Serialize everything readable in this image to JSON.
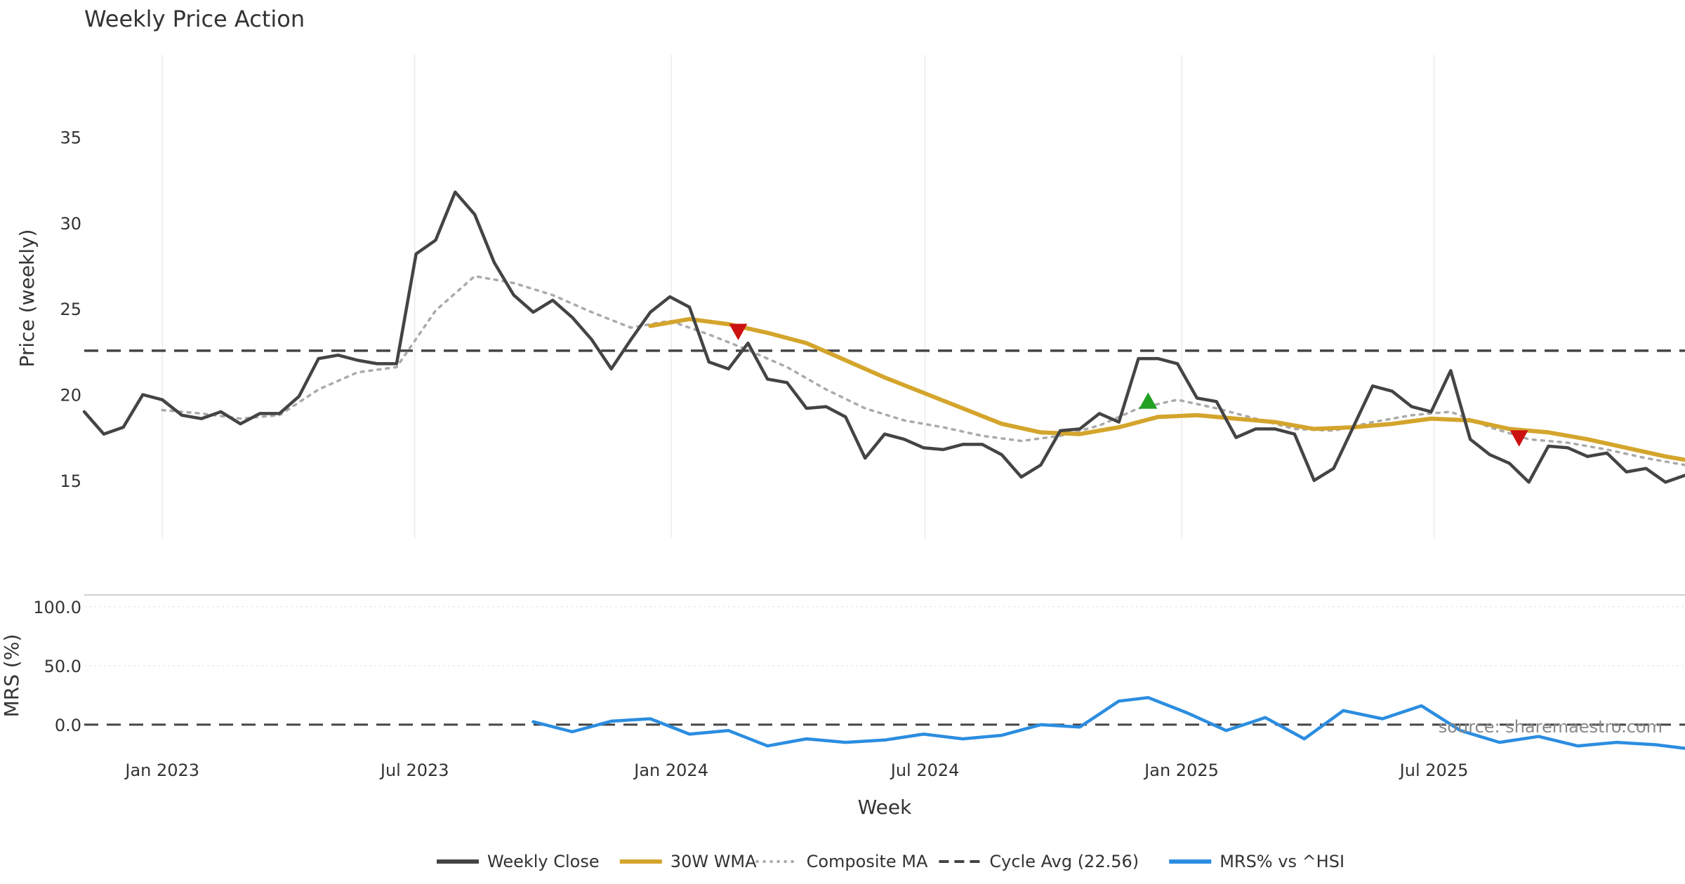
{
  "chart_data": [
    {
      "type": "line",
      "title": "Weekly Price Action",
      "ylabel": "Price (weekly)",
      "xlabel": "",
      "x_range": [
        "2022-11-06",
        "2025-12-28"
      ],
      "ylim": [
        11.6,
        39.8
      ],
      "yticks": [
        15,
        20,
        25,
        30,
        35
      ],
      "ytick_labels": [
        "15",
        "20",
        "25",
        "30",
        "35"
      ],
      "xgrid": [
        "2023-01-01",
        "2023-07-01",
        "2024-01-01",
        "2024-07-01",
        "2025-01-01",
        "2025-07-01"
      ],
      "series": [
        {
          "name": "Weekly Close",
          "color": "#444444",
          "style": "solid",
          "points": [
            [
              "2022-11-06",
              19.0
            ],
            [
              "2022-11-20",
              17.7
            ],
            [
              "2022-12-04",
              18.1
            ],
            [
              "2022-12-18",
              20.0
            ],
            [
              "2023-01-01",
              19.7
            ],
            [
              "2023-01-15",
              18.8
            ],
            [
              "2023-01-29",
              18.6
            ],
            [
              "2023-02-12",
              19.0
            ],
            [
              "2023-02-26",
              18.3
            ],
            [
              "2023-03-12",
              18.9
            ],
            [
              "2023-03-26",
              18.9
            ],
            [
              "2023-04-09",
              19.9
            ],
            [
              "2023-04-23",
              22.1
            ],
            [
              "2023-05-07",
              22.3
            ],
            [
              "2023-05-21",
              22.0
            ],
            [
              "2023-06-04",
              21.8
            ],
            [
              "2023-06-18",
              21.8
            ],
            [
              "2023-07-02",
              28.2
            ],
            [
              "2023-07-16",
              29.0
            ],
            [
              "2023-07-30",
              31.8
            ],
            [
              "2023-08-13",
              30.5
            ],
            [
              "2023-08-27",
              27.7
            ],
            [
              "2023-09-10",
              25.8
            ],
            [
              "2023-09-24",
              24.8
            ],
            [
              "2023-10-08",
              25.5
            ],
            [
              "2023-10-22",
              24.5
            ],
            [
              "2023-11-05",
              23.2
            ],
            [
              "2023-11-19",
              21.5
            ],
            [
              "2023-12-03",
              23.2
            ],
            [
              "2023-12-17",
              24.8
            ],
            [
              "2023-12-31",
              25.7
            ],
            [
              "2024-01-14",
              25.1
            ],
            [
              "2024-01-28",
              21.9
            ],
            [
              "2024-02-11",
              21.5
            ],
            [
              "2024-02-25",
              23.0
            ],
            [
              "2024-03-10",
              20.9
            ],
            [
              "2024-03-24",
              20.7
            ],
            [
              "2024-04-07",
              19.2
            ],
            [
              "2024-04-21",
              19.3
            ],
            [
              "2024-05-05",
              18.7
            ],
            [
              "2024-05-19",
              16.3
            ],
            [
              "2024-06-02",
              17.7
            ],
            [
              "2024-06-16",
              17.4
            ],
            [
              "2024-06-30",
              16.9
            ],
            [
              "2024-07-14",
              16.8
            ],
            [
              "2024-07-28",
              17.1
            ],
            [
              "2024-08-11",
              17.1
            ],
            [
              "2024-08-25",
              16.5
            ],
            [
              "2024-09-08",
              15.2
            ],
            [
              "2024-09-22",
              15.9
            ],
            [
              "2024-10-06",
              17.9
            ],
            [
              "2024-10-20",
              18.0
            ],
            [
              "2024-11-03",
              18.9
            ],
            [
              "2024-11-17",
              18.4
            ],
            [
              "2024-12-01",
              22.1
            ],
            [
              "2024-12-15",
              22.1
            ],
            [
              "2024-12-29",
              21.8
            ],
            [
              "2025-01-12",
              19.8
            ],
            [
              "2025-01-26",
              19.6
            ],
            [
              "2025-02-09",
              17.5
            ],
            [
              "2025-02-23",
              18.0
            ],
            [
              "2025-03-09",
              18.0
            ],
            [
              "2025-03-23",
              17.7
            ],
            [
              "2025-04-06",
              15.0
            ],
            [
              "2025-04-20",
              15.7
            ],
            [
              "2025-05-04",
              18.1
            ],
            [
              "2025-05-18",
              20.5
            ],
            [
              "2025-06-01",
              20.2
            ],
            [
              "2025-06-15",
              19.3
            ],
            [
              "2025-06-29",
              19.0
            ],
            [
              "2025-07-13",
              21.4
            ],
            [
              "2025-07-27",
              17.4
            ],
            [
              "2025-08-10",
              16.5
            ],
            [
              "2025-08-24",
              16.0
            ],
            [
              "2025-09-07",
              14.9
            ],
            [
              "2025-09-21",
              17.0
            ],
            [
              "2025-10-05",
              16.9
            ],
            [
              "2025-10-19",
              16.4
            ],
            [
              "2025-11-02",
              16.6
            ],
            [
              "2025-11-16",
              15.5
            ],
            [
              "2025-11-30",
              15.7
            ],
            [
              "2025-12-14",
              14.9
            ],
            [
              "2025-12-28",
              15.3
            ]
          ]
        },
        {
          "name": "30W WMA",
          "color": "#d4a52c",
          "style": "solid",
          "points": [
            [
              "2023-12-17",
              24.0
            ],
            [
              "2024-01-14",
              24.4
            ],
            [
              "2024-02-11",
              24.1
            ],
            [
              "2024-03-10",
              23.6
            ],
            [
              "2024-04-07",
              23.0
            ],
            [
              "2024-05-05",
              22.0
            ],
            [
              "2024-06-02",
              21.0
            ],
            [
              "2024-06-30",
              20.1
            ],
            [
              "2024-07-28",
              19.2
            ],
            [
              "2024-08-25",
              18.3
            ],
            [
              "2024-09-22",
              17.8
            ],
            [
              "2024-10-20",
              17.7
            ],
            [
              "2024-11-17",
              18.1
            ],
            [
              "2024-12-15",
              18.7
            ],
            [
              "2025-01-12",
              18.8
            ],
            [
              "2025-02-09",
              18.6
            ],
            [
              "2025-03-09",
              18.4
            ],
            [
              "2025-04-06",
              18.0
            ],
            [
              "2025-05-04",
              18.1
            ],
            [
              "2025-06-01",
              18.3
            ],
            [
              "2025-06-29",
              18.6
            ],
            [
              "2025-07-27",
              18.5
            ],
            [
              "2025-08-24",
              18.0
            ],
            [
              "2025-09-21",
              17.8
            ],
            [
              "2025-10-19",
              17.4
            ],
            [
              "2025-11-16",
              16.9
            ],
            [
              "2025-12-14",
              16.4
            ],
            [
              "2025-12-28",
              16.2
            ]
          ]
        },
        {
          "name": "Composite MA",
          "color": "#aaaaaa",
          "style": "dotted",
          "points": [
            [
              "2023-01-01",
              19.1
            ],
            [
              "2023-01-29",
              18.9
            ],
            [
              "2023-02-26",
              18.6
            ],
            [
              "2023-03-26",
              18.8
            ],
            [
              "2023-04-23",
              20.3
            ],
            [
              "2023-05-21",
              21.3
            ],
            [
              "2023-06-18",
              21.6
            ],
            [
              "2023-07-16",
              24.9
            ],
            [
              "2023-08-13",
              26.9
            ],
            [
              "2023-09-10",
              26.5
            ],
            [
              "2023-10-08",
              25.8
            ],
            [
              "2023-11-05",
              24.8
            ],
            [
              "2023-12-03",
              23.9
            ],
            [
              "2023-12-31",
              24.3
            ],
            [
              "2024-01-28",
              23.5
            ],
            [
              "2024-02-25",
              22.6
            ],
            [
              "2024-03-24",
              21.6
            ],
            [
              "2024-04-21",
              20.3
            ],
            [
              "2024-05-19",
              19.2
            ],
            [
              "2024-06-16",
              18.5
            ],
            [
              "2024-07-14",
              18.1
            ],
            [
              "2024-08-11",
              17.6
            ],
            [
              "2024-09-08",
              17.3
            ],
            [
              "2024-10-06",
              17.6
            ],
            [
              "2024-11-03",
              18.2
            ],
            [
              "2024-12-01",
              19.2
            ],
            [
              "2024-12-29",
              19.7
            ],
            [
              "2025-01-26",
              19.2
            ],
            [
              "2025-02-23",
              18.6
            ],
            [
              "2025-03-23",
              18.0
            ],
            [
              "2025-04-20",
              17.9
            ],
            [
              "2025-05-18",
              18.4
            ],
            [
              "2025-06-15",
              18.8
            ],
            [
              "2025-07-13",
              19.0
            ],
            [
              "2025-08-10",
              18.1
            ],
            [
              "2025-09-07",
              17.4
            ],
            [
              "2025-10-05",
              17.2
            ],
            [
              "2025-11-02",
              16.8
            ],
            [
              "2025-11-30",
              16.3
            ],
            [
              "2025-12-28",
              15.9
            ]
          ]
        }
      ],
      "reference_line": {
        "name": "Cycle Avg (22.56)",
        "y": 22.56,
        "color": "#444444",
        "style": "dashed"
      },
      "markers": [
        {
          "type": "sell",
          "x": "2024-02-18",
          "y": 23.7,
          "color": "#cc1111"
        },
        {
          "type": "buy",
          "x": "2024-12-08",
          "y": 19.6,
          "color": "#22a022"
        },
        {
          "type": "sell",
          "x": "2025-08-31",
          "y": 17.5,
          "color": "#cc1111"
        }
      ]
    },
    {
      "type": "line",
      "ylabel": "MRS (%)",
      "xlabel": "Week",
      "ylim": [
        -28,
        110
      ],
      "yticks": [
        0,
        50,
        100
      ],
      "ytick_labels": [
        "0.0",
        "50.0",
        "100.0"
      ],
      "xticks": [
        "2023-01-01",
        "2023-07-01",
        "2024-01-01",
        "2024-07-01",
        "2025-01-01",
        "2025-07-01"
      ],
      "xtick_labels": [
        "Jan 2023",
        "Jul 2023",
        "Jan 2024",
        "Jul 2024",
        "Jan 2025",
        "Jul 2025"
      ],
      "series": [
        {
          "name": "MRS% vs ^HSI",
          "color": "#2b8de0",
          "style": "solid",
          "points": [
            [
              "2023-09-24",
              2.5
            ],
            [
              "2023-10-22",
              -6.0
            ],
            [
              "2023-11-19",
              3.0
            ],
            [
              "2023-12-17",
              5.0
            ],
            [
              "2024-01-14",
              -8.0
            ],
            [
              "2024-02-11",
              -5.0
            ],
            [
              "2024-03-10",
              -18.0
            ],
            [
              "2024-04-07",
              -12.0
            ],
            [
              "2024-05-05",
              -15.0
            ],
            [
              "2024-06-02",
              -13.0
            ],
            [
              "2024-06-30",
              -8.0
            ],
            [
              "2024-07-28",
              -12.0
            ],
            [
              "2024-08-25",
              -9.0
            ],
            [
              "2024-09-22",
              0.0
            ],
            [
              "2024-10-20",
              -2.0
            ],
            [
              "2024-11-17",
              20.0
            ],
            [
              "2024-12-08",
              23.0
            ],
            [
              "2025-01-05",
              10.0
            ],
            [
              "2025-02-02",
              -5.0
            ],
            [
              "2025-03-02",
              6.0
            ],
            [
              "2025-03-30",
              -12.0
            ],
            [
              "2025-04-27",
              12.0
            ],
            [
              "2025-05-25",
              5.0
            ],
            [
              "2025-06-22",
              16.0
            ],
            [
              "2025-07-20",
              -5.0
            ],
            [
              "2025-08-17",
              -15.0
            ],
            [
              "2025-09-14",
              -10.0
            ],
            [
              "2025-10-12",
              -18.0
            ],
            [
              "2025-11-09",
              -15.0
            ],
            [
              "2025-12-07",
              -17.0
            ],
            [
              "2025-12-28",
              -20.0
            ]
          ]
        }
      ],
      "reference_line": {
        "y": 0,
        "color": "#444444",
        "style": "dashed"
      },
      "annotation": "source: sharemaestro.com"
    }
  ],
  "legend": {
    "placement": "bottom-center",
    "items": [
      {
        "label": "Weekly Close",
        "color": "#444444",
        "style": "solid"
      },
      {
        "label": "30W WMA",
        "color": "#d4a52c",
        "style": "solid"
      },
      {
        "label": "Composite MA",
        "color": "#aaaaaa",
        "style": "dotted"
      },
      {
        "label": "Cycle Avg (22.56)",
        "color": "#444444",
        "style": "dashed"
      },
      {
        "label": "MRS% vs ^HSI",
        "color": "#2b8de0",
        "style": "solid"
      }
    ]
  }
}
